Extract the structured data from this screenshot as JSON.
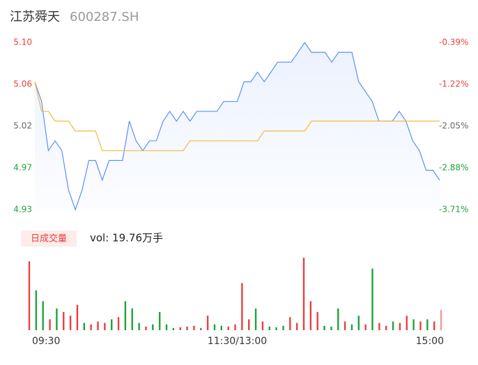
{
  "chart_data": [
    {
      "type": "line",
      "title": "江苏舜天",
      "subtitle": "600287.SH",
      "x": [
        0,
        4,
        8,
        12,
        16,
        20,
        24,
        28,
        32,
        36,
        40,
        44,
        48,
        52,
        56,
        60,
        64,
        68,
        72,
        76,
        80,
        84,
        88,
        92,
        96,
        100,
        104,
        108,
        112,
        116,
        120,
        124,
        128,
        132,
        136,
        140,
        144,
        148,
        152,
        156,
        160,
        164,
        168,
        172,
        176,
        180,
        184,
        188,
        192,
        196,
        200,
        204,
        208,
        212,
        216,
        220,
        224,
        228,
        232,
        236,
        240
      ],
      "xlim": [
        0,
        240
      ],
      "ylim": [
        4.93,
        5.1
      ],
      "yticks": [
        {
          "value": 5.1,
          "label": "5.10"
        },
        {
          "value": 5.0575,
          "label": "5.06"
        },
        {
          "value": 5.015,
          "label": "5.02"
        },
        {
          "value": 4.9725,
          "label": "4.97"
        },
        {
          "value": 4.93,
          "label": "4.93"
        }
      ],
      "ytick_colors": [
        "#e8413f",
        "#e8413f",
        "#666666",
        "#1fa33d",
        "#1fa33d"
      ],
      "y2lim": [
        -3.71,
        -0.39
      ],
      "y2ticks": [
        {
          "value": -0.39,
          "label": "-0.39%"
        },
        {
          "value": -1.22,
          "label": "-1.22%"
        },
        {
          "value": -2.05,
          "label": "-2.05%"
        },
        {
          "value": -2.88,
          "label": "-2.88%"
        },
        {
          "value": -3.71,
          "label": "-3.71%"
        }
      ],
      "series": [
        {
          "color": "#5b8ff9",
          "values": [
            5.06,
            5.04,
            4.99,
            5.0,
            4.99,
            4.95,
            4.93,
            4.95,
            4.98,
            4.98,
            4.96,
            4.98,
            4.98,
            4.98,
            5.02,
            5.0,
            4.99,
            5.0,
            5.0,
            5.02,
            5.03,
            5.02,
            5.03,
            5.02,
            5.03,
            5.03,
            5.03,
            5.03,
            5.04,
            5.04,
            5.04,
            5.06,
            5.06,
            5.07,
            5.06,
            5.07,
            5.08,
            5.08,
            5.08,
            5.09,
            5.1,
            5.09,
            5.09,
            5.09,
            5.08,
            5.09,
            5.09,
            5.09,
            5.06,
            5.05,
            5.04,
            5.02,
            5.02,
            5.02,
            5.03,
            5.02,
            5.0,
            4.99,
            4.97,
            4.97,
            4.96
          ]
        },
        {
          "color": "#f5b93c",
          "values": [
            5.06,
            5.03,
            5.03,
            5.02,
            5.02,
            5.02,
            5.01,
            5.01,
            5.01,
            5.01,
            4.99,
            4.99,
            4.99,
            4.99,
            4.99,
            4.99,
            4.99,
            4.99,
            4.99,
            4.99,
            4.99,
            4.99,
            4.99,
            5.0,
            5.0,
            5.0,
            5.0,
            5.0,
            5.0,
            5.0,
            5.0,
            5.0,
            5.0,
            5.0,
            5.01,
            5.01,
            5.01,
            5.01,
            5.01,
            5.01,
            5.01,
            5.02,
            5.02,
            5.02,
            5.02,
            5.02,
            5.02,
            5.02,
            5.02,
            5.02,
            5.02,
            5.02,
            5.02,
            5.02,
            5.02,
            5.02,
            5.02,
            5.02,
            5.02,
            5.02,
            5.02
          ]
        }
      ]
    },
    {
      "type": "bar",
      "label": "日成交量",
      "summary": "vol: 19.76万手",
      "x": [
        0,
        4,
        8,
        12,
        16,
        20,
        24,
        28,
        32,
        36,
        40,
        44,
        48,
        52,
        56,
        60,
        64,
        68,
        72,
        76,
        80,
        84,
        88,
        92,
        96,
        100,
        104,
        108,
        112,
        116,
        120,
        124,
        128,
        132,
        136,
        140,
        144,
        148,
        152,
        156,
        160,
        164,
        168,
        172,
        176,
        180,
        184,
        188,
        192,
        196,
        200,
        204,
        208,
        212,
        216,
        220,
        224,
        228,
        232,
        236,
        240
      ],
      "xlim": [
        0,
        240
      ],
      "xticks": [
        {
          "value": 0,
          "label": "09:30"
        },
        {
          "value": 120,
          "label": "11:30/13:00"
        },
        {
          "value": 240,
          "label": "15:00"
        }
      ],
      "ylim": [
        0,
        100
      ],
      "values": [
        95,
        55,
        40,
        15,
        30,
        25,
        20,
        35,
        10,
        8,
        12,
        10,
        15,
        18,
        40,
        30,
        10,
        5,
        8,
        25,
        8,
        3,
        4,
        5,
        6,
        3,
        20,
        8,
        6,
        5,
        8,
        65,
        15,
        30,
        12,
        5,
        4,
        6,
        18,
        10,
        100,
        40,
        25,
        6,
        5,
        30,
        12,
        8,
        20,
        8,
        85,
        10,
        6,
        12,
        10,
        20,
        15,
        12,
        15,
        12,
        28
      ],
      "colors": [
        "#e8413f",
        "#1fa33d",
        "#1fa33d",
        "#e8413f",
        "#1fa33d",
        "#e8413f",
        "#e8413f",
        "#e8413f",
        "#1fa33d",
        "#e8413f",
        "#e8413f",
        "#e8413f",
        "#1fa33d",
        "#e8413f",
        "#1fa33d",
        "#1fa33d",
        "#1fa33d",
        "#e8413f",
        "#1fa33d",
        "#1fa33d",
        "#1fa33d",
        "#1fa33d",
        "#e8413f",
        "#e8413f",
        "#e8413f",
        "#e8413f",
        "#e8413f",
        "#1fa33d",
        "#1fa33d",
        "#e8413f",
        "#e8413f",
        "#e8413f",
        "#e8413f",
        "#1fa33d",
        "#e8413f",
        "#1fa33d",
        "#1fa33d",
        "#1fa33d",
        "#e8413f",
        "#e8413f",
        "#e8413f",
        "#e8413f",
        "#e8413f",
        "#1fa33d",
        "#1fa33d",
        "#1fa33d",
        "#e8413f",
        "#1fa33d",
        "#1fa33d",
        "#e8413f",
        "#1fa33d",
        "#e8413f",
        "#e8413f",
        "#1fa33d",
        "#e8413f",
        "#e8413f",
        "#1fa33d",
        "#e8413f",
        "#1fa33d",
        "#e8413f",
        "#f39a9a"
      ]
    }
  ]
}
